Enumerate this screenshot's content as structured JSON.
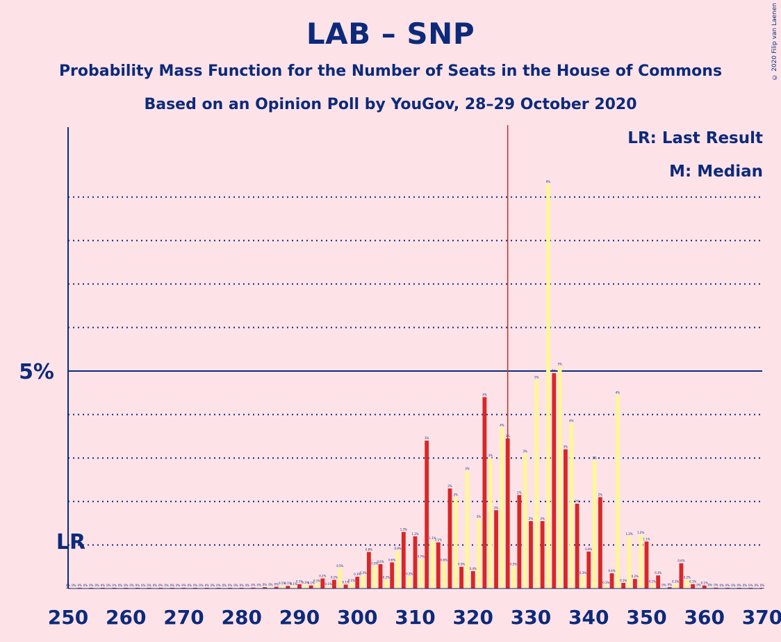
{
  "title": "LAB – SNP",
  "subtitle1": "Probability Mass Function for the Number of Seats in the House of Commons",
  "subtitle2": "Based on an Opinion Poll by YouGov, 28–29 October 2020",
  "copyright": "© 2020 Filip van Laenen",
  "legend": {
    "lr": "LR: Last Result",
    "m": "M: Median"
  },
  "lr_marker": "LR",
  "colors": {
    "background": "#FDE3E8",
    "text": "#0D2A7A",
    "bar_red": "#D92727",
    "bar_yellow": "#FFF59B",
    "median_line": "#D92727"
  },
  "chart_data": {
    "type": "bar",
    "xlim": [
      250,
      370
    ],
    "ylim": [
      0,
      10
    ],
    "x_ticks": [
      250,
      260,
      270,
      280,
      290,
      300,
      310,
      320,
      330,
      340,
      350,
      360,
      370
    ],
    "y_labelled_tick": {
      "value": 5,
      "label": "5%"
    },
    "gridlines_dotted": [
      1,
      2,
      3,
      4,
      6,
      7,
      8,
      9
    ],
    "last_result": 250,
    "median": 326,
    "x": [
      250,
      251,
      252,
      253,
      254,
      255,
      256,
      257,
      258,
      259,
      260,
      261,
      262,
      263,
      264,
      265,
      266,
      267,
      268,
      269,
      270,
      271,
      272,
      273,
      274,
      275,
      276,
      277,
      278,
      279,
      280,
      281,
      282,
      283,
      284,
      285,
      286,
      287,
      288,
      289,
      290,
      291,
      292,
      293,
      294,
      295,
      296,
      297,
      298,
      299,
      300,
      301,
      302,
      303,
      304,
      305,
      306,
      307,
      308,
      309,
      310,
      311,
      312,
      313,
      314,
      315,
      316,
      317,
      318,
      319,
      320,
      321,
      322,
      323,
      324,
      325,
      326,
      327,
      328,
      329,
      330,
      331,
      332,
      333,
      334,
      335,
      336,
      337,
      338,
      339,
      340,
      341,
      342,
      343,
      344,
      345,
      346,
      347,
      348,
      349,
      350,
      351,
      352,
      353,
      354,
      355,
      356,
      357,
      358,
      359,
      360,
      361,
      362,
      363,
      364,
      365,
      366,
      367,
      368,
      369,
      370
    ],
    "values": [
      0.01,
      0.01,
      0.01,
      0.01,
      0.01,
      0.01,
      0.01,
      0.01,
      0.01,
      0.01,
      0.01,
      0.01,
      0.01,
      0.01,
      0.01,
      0.01,
      0.01,
      0.01,
      0.01,
      0.01,
      0.01,
      0.01,
      0.01,
      0.01,
      0.01,
      0.01,
      0.01,
      0.01,
      0.01,
      0.01,
      0.01,
      0.01,
      0.02,
      0.02,
      0.03,
      0.03,
      0.04,
      0.06,
      0.06,
      0.05,
      0.1,
      0.08,
      0.07,
      0.12,
      0.23,
      0.05,
      0.2,
      0.46,
      0.09,
      0.13,
      0.27,
      0.3,
      0.84,
      0.52,
      0.56,
      0.2,
      0.6,
      0.86,
      1.3,
      0.28,
      1.2,
      0.68,
      3.4,
      1.1,
      1.06,
      0.6,
      2.3,
      2.1,
      0.5,
      2.7,
      0.4,
      1.6,
      4.4,
      3,
      1.8,
      3.7,
      3.45,
      0.5,
      2.15,
      3.1,
      1.55,
      4.8,
      1.55,
      9.3,
      4.95,
      5.1,
      3.2,
      3.8,
      1.95,
      0.3,
      0.85,
      2.95,
      2.1,
      0.08,
      0.35,
      4.45,
      0.13,
      1.2,
      0.22,
      1.23,
      1.08,
      0.1,
      0.3,
      0.02,
      0.03,
      0.1,
      0.58,
      0.2,
      0.1,
      0.02,
      0.07,
      0.02,
      0.02,
      0.01,
      0.01,
      0.01,
      0.01,
      0.01,
      0.01,
      0.01,
      0.01
    ],
    "value_labels": [
      "0%",
      "0%",
      "0%",
      "0%",
      "0%",
      "0%",
      "0%",
      "0%",
      "0%",
      "0%",
      "0%",
      "0%",
      "0%",
      "0%",
      "0%",
      "0%",
      "0%",
      "0%",
      "0%",
      "0%",
      "0%",
      "0%",
      "0%",
      "0%",
      "0%",
      "0%",
      "0%",
      "0%",
      "0%",
      "0%",
      "0%",
      "0%",
      "0%",
      "0%",
      "0%",
      "0%",
      "0%",
      "0.1%",
      "0.1%",
      "0.1%",
      "0.1%",
      "0.1%",
      "0.1%",
      "0.1%",
      "0.2%",
      "0.1%",
      "0.2%",
      "0.5%",
      "0.1%",
      "0.1%",
      "0.3%",
      "0.3%",
      "0.8%",
      "0.5%",
      "0.6%",
      "0.2%",
      "0.6%",
      "0.9%",
      "1.3%",
      "0.3%",
      "1.2%",
      "0.7%",
      "3%",
      "1.1%",
      "1.1%",
      "0.6%",
      "2%",
      "2%",
      "0.5%",
      "3%",
      "0.4%",
      "2%",
      "4%",
      "3%",
      "2%",
      "4%",
      "3%",
      "0.5%",
      "2%",
      "3%",
      "2%",
      "5%",
      "2%",
      "9%",
      "5%",
      "5%",
      "3%",
      "4%",
      "2%",
      "0.3%",
      "0.9%",
      "3%",
      "2%",
      "0.1%",
      "0.4%",
      "4%",
      "0.1%",
      "1.2%",
      "0.2%",
      "1.2%",
      "1.1%",
      "0.1%",
      "0.3%",
      "0%",
      "0%",
      "0.1%",
      "0.6%",
      "0.2%",
      "0.1%",
      "0%",
      "0.1%",
      "0%",
      "0%",
      "0%",
      "0%",
      "0%",
      "0%",
      "0%",
      "0%",
      "0%",
      "0%"
    ],
    "bar_colors": [
      "red",
      "yellow",
      "red",
      "yellow",
      "red",
      "yellow",
      "red",
      "yellow",
      "red",
      "yellow",
      "red",
      "yellow",
      "red",
      "yellow",
      "red",
      "yellow",
      "red",
      "yellow",
      "red",
      "yellow",
      "red",
      "yellow",
      "red",
      "yellow",
      "red",
      "yellow",
      "red",
      "yellow",
      "red",
      "yellow",
      "red",
      "yellow",
      "red",
      "yellow",
      "red",
      "yellow",
      "red",
      "yellow",
      "red",
      "yellow",
      "red",
      "yellow",
      "red",
      "yellow",
      "red",
      "yellow",
      "red",
      "yellow",
      "red",
      "yellow",
      "red",
      "yellow",
      "red",
      "yellow",
      "red",
      "yellow",
      "red",
      "yellow",
      "red",
      "yellow",
      "red",
      "yellow",
      "red",
      "yellow",
      "red",
      "yellow",
      "red",
      "yellow",
      "red",
      "yellow",
      "red",
      "yellow",
      "red",
      "yellow",
      "red",
      "yellow",
      "red",
      "yellow",
      "red",
      "yellow",
      "red",
      "yellow",
      "red",
      "yellow",
      "red",
      "yellow",
      "red",
      "yellow",
      "red",
      "yellow",
      "red",
      "yellow",
      "red",
      "yellow",
      "red",
      "yellow",
      "red",
      "yellow",
      "red",
      "yellow",
      "red",
      "yellow",
      "red",
      "yellow",
      "red",
      "yellow",
      "red",
      "yellow",
      "red",
      "yellow",
      "red",
      "yellow",
      "red",
      "yellow",
      "red",
      "yellow",
      "red",
      "yellow",
      "red",
      "yellow",
      "red"
    ]
  }
}
